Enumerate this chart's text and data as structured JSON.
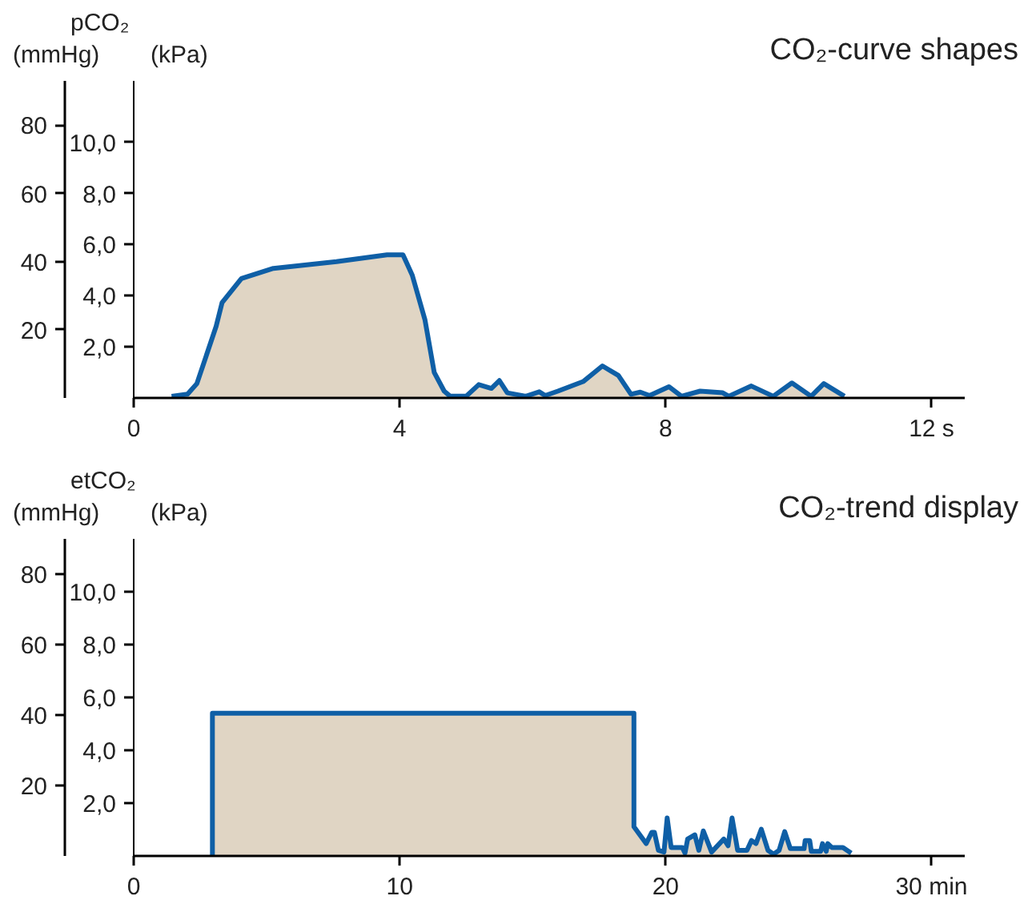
{
  "chart_data": [
    {
      "type": "area",
      "title": "CO₂-curve shapes",
      "ylabel": "(mmHg)",
      "y2label": "(kPa)",
      "annotations": [
        "pCO₂"
      ],
      "xlim": [
        0,
        12.5
      ],
      "xticks": [
        0,
        4,
        8,
        {
          "value": 12,
          "label": "12 s"
        }
      ],
      "ylim": [
        0,
        93
      ],
      "yticks": [
        20,
        40,
        60,
        80
      ],
      "y2lim": [
        0,
        12.4
      ],
      "y2ticks": [
        {
          "value": 2,
          "label": "2,0"
        },
        {
          "value": 4,
          "label": "4,0"
        },
        {
          "value": 6,
          "label": "6,0"
        },
        {
          "value": 8,
          "label": "8,0"
        },
        {
          "value": 10,
          "label": "10,0"
        }
      ],
      "grid": false,
      "series": [
        {
          "color": "#0f5fa6",
          "x": [
            0.57,
            0.81,
            0.95,
            1.24,
            1.33,
            1.62,
            2.1,
            3.05,
            3.81,
            4.05,
            4.19,
            4.38,
            4.52,
            4.67,
            4.76,
            5.0,
            5.19,
            5.38,
            5.5,
            5.62,
            5.9,
            6.1,
            6.19,
            6.38,
            6.76,
            7.05,
            7.29,
            7.48,
            7.62,
            7.76,
            8.05,
            8.24,
            8.52,
            8.86,
            8.95,
            9.29,
            9.62,
            9.9,
            10.19,
            10.38,
            10.69
          ],
          "values": [
            0.5,
            1.1,
            4.2,
            21,
            28,
            35,
            38,
            40,
            42,
            42,
            36,
            23,
            7.5,
            2,
            0.5,
            0.5,
            3.9,
            2.8,
            5.1,
            1.5,
            0.5,
            1.8,
            0.7,
            2,
            4.8,
            9.4,
            6.6,
            1.1,
            1.7,
            0.7,
            3.3,
            0.5,
            2,
            1.5,
            0.5,
            3.5,
            0.5,
            4.4,
            0.5,
            4.2,
            0.5
          ]
        }
      ]
    },
    {
      "type": "area",
      "title": "CO₂-trend display",
      "ylabel": "(mmHg)",
      "y2label": "(kPa)",
      "annotations": [
        "etCO₂"
      ],
      "xlim": [
        0,
        31.25
      ],
      "xticks": [
        0,
        10,
        20,
        {
          "value": 30,
          "label": "30 min"
        }
      ],
      "ylim": [
        0,
        90
      ],
      "yticks": [
        20,
        40,
        60,
        80
      ],
      "y2lim": [
        0,
        12
      ],
      "y2ticks": [
        {
          "value": 2,
          "label": "2,0"
        },
        {
          "value": 4,
          "label": "4,0"
        },
        {
          "value": 6,
          "label": "6,0"
        },
        {
          "value": 8,
          "label": "8,0"
        },
        {
          "value": 10,
          "label": "10,0"
        }
      ],
      "grid": false,
      "series": [
        {
          "color": "#0f5fa6",
          "x": [
            2.96,
            2.96,
            18.81,
            18.81,
            19.27,
            19.48,
            19.58,
            19.73,
            19.94,
            20.06,
            20.21,
            20.63,
            20.73,
            20.83,
            21.1,
            21.25,
            21.42,
            21.73,
            22.19,
            22.35,
            22.5,
            22.71,
            23.06,
            23.23,
            23.4,
            23.6,
            23.85,
            24.06,
            24.27,
            24.48,
            24.69,
            25.21,
            25.25,
            25.42,
            25.48,
            25.83,
            25.9,
            26.04,
            26.1,
            26.25,
            26.67,
            26.98
          ],
          "values": [
            0,
            40.5,
            40.5,
            8.3,
            3.5,
            6.7,
            6.7,
            1.6,
            1.1,
            10.8,
            2.4,
            2.4,
            0.8,
            4.8,
            6,
            1.6,
            7.1,
            1.1,
            4.8,
            2.9,
            10.8,
            1.6,
            1.6,
            4.4,
            3.5,
            7.6,
            1.6,
            0.5,
            1.6,
            6.9,
            2.1,
            2.1,
            4.4,
            4.4,
            1.3,
            1.3,
            3.5,
            1.3,
            3.5,
            2.4,
            2.4,
            0.8
          ]
        }
      ]
    }
  ]
}
